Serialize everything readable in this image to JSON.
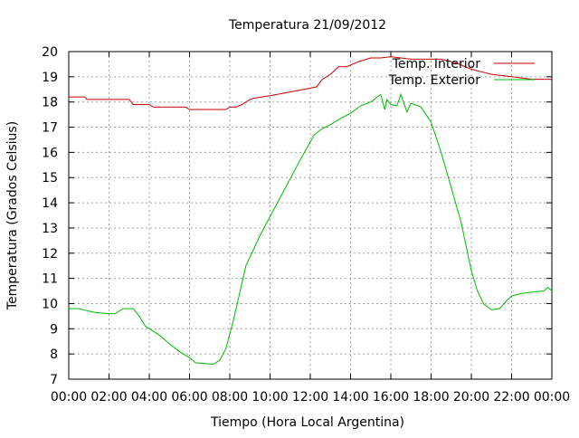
{
  "chart_data": {
    "type": "line",
    "title": "Temperatura 21/09/2012",
    "xlabel": "Tiempo (Hora Local Argentina)",
    "ylabel": "Temperatura (Grados Celsius)",
    "xlim": [
      0,
      24
    ],
    "ylim": [
      7,
      20
    ],
    "x_ticks": [
      "00:00",
      "02:00",
      "04:00",
      "06:00",
      "08:00",
      "10:00",
      "12:00",
      "14:00",
      "16:00",
      "18:00",
      "20:00",
      "22:00",
      "00:00"
    ],
    "y_ticks": [
      "7",
      "8",
      "9",
      "10",
      "11",
      "12",
      "13",
      "14",
      "15",
      "16",
      "17",
      "18",
      "19",
      "20"
    ],
    "grid": true,
    "legend_position": "top-right",
    "series": [
      {
        "name": "Temp. Interior",
        "color": "#cc0000",
        "x": [
          0,
          0.8,
          0.9,
          2.0,
          3.0,
          3.2,
          4.0,
          4.2,
          5.0,
          5.8,
          6.0,
          7.0,
          7.8,
          8.0,
          8.3,
          8.6,
          9.0,
          9.2,
          10.0,
          11.0,
          12.0,
          12.3,
          12.6,
          13.0,
          13.4,
          13.8,
          14.4,
          15.0,
          15.5,
          16.0,
          16.5,
          17.0,
          17.8,
          18.5,
          19.0,
          19.4,
          20.0,
          20.5,
          21.0,
          22.0,
          23.0,
          24.0
        ],
        "y": [
          18.2,
          18.2,
          18.1,
          18.1,
          18.1,
          17.9,
          17.9,
          17.8,
          17.8,
          17.8,
          17.7,
          17.7,
          17.7,
          17.8,
          17.8,
          17.9,
          18.1,
          18.15,
          18.25,
          18.4,
          18.55,
          18.6,
          18.9,
          19.1,
          19.4,
          19.4,
          19.6,
          19.75,
          19.75,
          19.8,
          19.75,
          19.7,
          19.7,
          19.7,
          19.6,
          19.5,
          19.3,
          19.2,
          19.1,
          19.0,
          18.9,
          18.9
        ]
      },
      {
        "name": "Temp. Exterior",
        "color": "#00bb00",
        "x": [
          0,
          0.5,
          1.0,
          1.3,
          2.0,
          2.3,
          2.7,
          3.0,
          3.2,
          3.5,
          3.8,
          4.0,
          4.5,
          5.0,
          5.5,
          6.0,
          6.3,
          6.8,
          7.0,
          7.2,
          7.5,
          7.8,
          8.2,
          8.8,
          9.5,
          10.5,
          11.5,
          12.2,
          12.6,
          13.0,
          13.5,
          14.0,
          14.5,
          15.0,
          15.5,
          15.7,
          15.8,
          16.0,
          16.3,
          16.5,
          16.8,
          17.0,
          17.5,
          18.0,
          18.5,
          19.0,
          19.5,
          20.0,
          20.3,
          20.6,
          21.0,
          21.4,
          21.8,
          22.0,
          22.5,
          23.0,
          23.6,
          23.8,
          24.0
        ],
        "y": [
          9.8,
          9.8,
          9.7,
          9.65,
          9.6,
          9.6,
          9.8,
          9.8,
          9.8,
          9.5,
          9.1,
          9.0,
          8.75,
          8.4,
          8.1,
          7.85,
          7.65,
          7.62,
          7.6,
          7.6,
          7.75,
          8.2,
          9.4,
          11.5,
          12.7,
          14.2,
          15.7,
          16.7,
          16.95,
          17.1,
          17.35,
          17.55,
          17.85,
          18.0,
          18.3,
          17.7,
          18.1,
          17.9,
          17.85,
          18.3,
          17.6,
          17.95,
          17.8,
          17.2,
          16.0,
          14.6,
          13.2,
          11.3,
          10.5,
          10.0,
          9.75,
          9.8,
          10.15,
          10.3,
          10.4,
          10.45,
          10.5,
          10.65,
          10.5
        ]
      }
    ]
  }
}
